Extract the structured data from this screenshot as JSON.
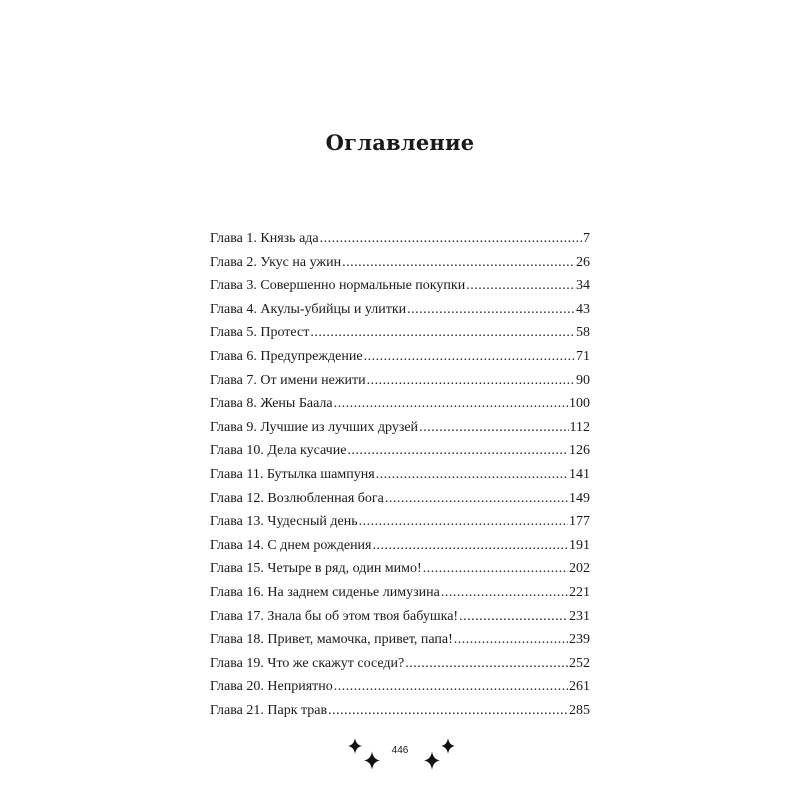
{
  "title": "Оглавление",
  "toc": [
    {
      "label": "Глава 1. Князь ада",
      "page": "7"
    },
    {
      "label": "Глава 2. Укус на ужин",
      "page": "26"
    },
    {
      "label": "Глава 3. Совершенно нормальные покупки",
      "page": "34"
    },
    {
      "label": "Глава 4. Акулы-убийцы и улитки",
      "page": "43"
    },
    {
      "label": "Глава 5. Протест",
      "page": "58"
    },
    {
      "label": "Глава 6. Предупреждение",
      "page": "71"
    },
    {
      "label": "Глава 7. От имени нежити",
      "page": "90"
    },
    {
      "label": "Глава 8. Жены Баала",
      "page": "100"
    },
    {
      "label": "Глава 9. Лучшие из лучших друзей",
      "page": "112"
    },
    {
      "label": "Глава 10. Дела кусачие",
      "page": "126"
    },
    {
      "label": "Глава 11. Бутылка шампуня",
      "page": "141"
    },
    {
      "label": "Глава 12. Возлюбленная бога",
      "page": "149"
    },
    {
      "label": "Глава 13. Чудесный день",
      "page": "177"
    },
    {
      "label": "Глава 14. С днем рождения",
      "page": "191"
    },
    {
      "label": "Глава 15. Четыре в ряд, один мимо!",
      "page": "202"
    },
    {
      "label": "Глава 16. На заднем сиденье лимузина",
      "page": "221"
    },
    {
      "label": "Глава 17. Знала бы об этом твоя бабушка!",
      "page": "231"
    },
    {
      "label": "Глава 18. Привет, мамочка, привет, папа!",
      "page": "239"
    },
    {
      "label": "Глава 19. Что же скажут соседи?",
      "page": "252"
    },
    {
      "label": "Глава 20. Неприятно",
      "page": "261"
    },
    {
      "label": "Глава 21. Парк трав",
      "page": "285"
    }
  ],
  "footer": {
    "page_number": "446",
    "ornament": "four-pointed-star-icon"
  }
}
